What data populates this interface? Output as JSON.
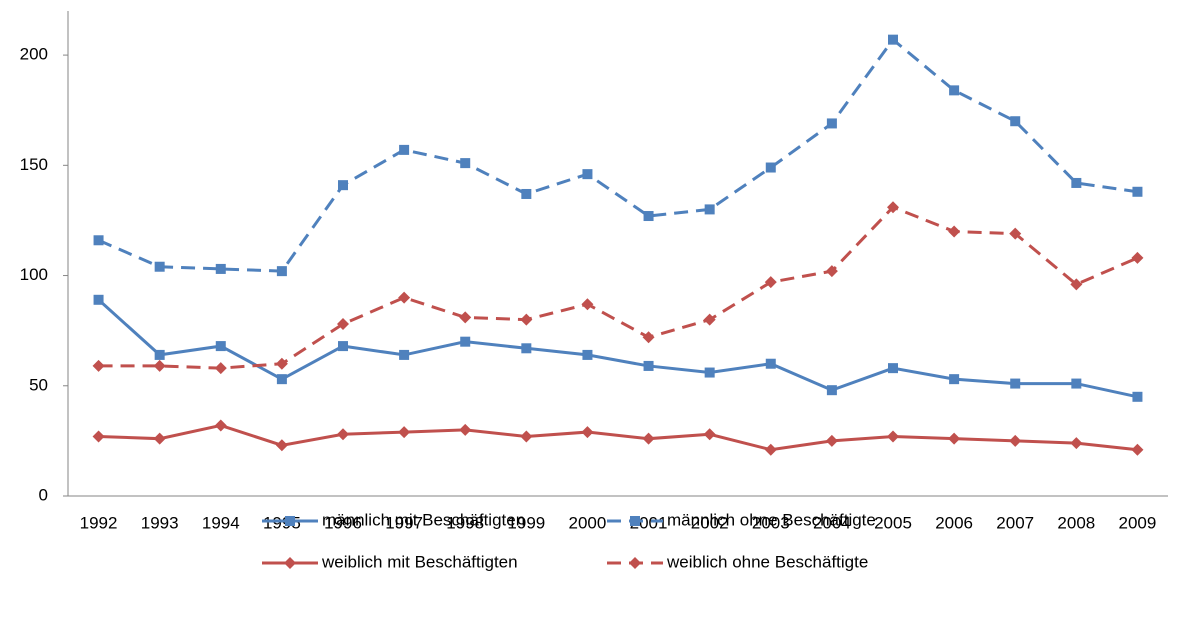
{
  "chart_data": {
    "type": "line",
    "categories": [
      "1992",
      "1993",
      "1994",
      "1995",
      "1996",
      "1997",
      "1998",
      "1999",
      "2000",
      "2001",
      "2002",
      "2003",
      "2004",
      "2005",
      "2006",
      "2007",
      "2008",
      "2009"
    ],
    "ylim": [
      0,
      220
    ],
    "yticks": [
      0,
      50,
      100,
      150,
      200
    ],
    "grid": false,
    "series": [
      {
        "name": "männlich mit Beschäftigten",
        "color": "#4f81bd",
        "dashed": false,
        "marker": "square",
        "values": [
          89,
          64,
          68,
          53,
          68,
          64,
          70,
          67,
          64,
          59,
          56,
          60,
          48,
          58,
          53,
          51,
          51,
          45
        ]
      },
      {
        "name": "männlich ohne Beschäftigte",
        "color": "#4f81bd",
        "dashed": true,
        "marker": "square",
        "values": [
          116,
          104,
          103,
          102,
          141,
          157,
          151,
          137,
          146,
          127,
          130,
          149,
          169,
          207,
          184,
          170,
          142,
          138
        ]
      },
      {
        "name": "weiblich mit Beschäftigten",
        "color": "#c0504d",
        "dashed": false,
        "marker": "diamond",
        "values": [
          27,
          26,
          32,
          23,
          28,
          29,
          30,
          27,
          29,
          26,
          28,
          21,
          25,
          27,
          26,
          25,
          24,
          21
        ]
      },
      {
        "name": "weiblich ohne Beschäftigte",
        "color": "#c0504d",
        "dashed": true,
        "marker": "diamond",
        "values": [
          59,
          59,
          58,
          60,
          78,
          90,
          81,
          80,
          87,
          72,
          80,
          97,
          102,
          131,
          120,
          119,
          96,
          108
        ]
      }
    ]
  }
}
